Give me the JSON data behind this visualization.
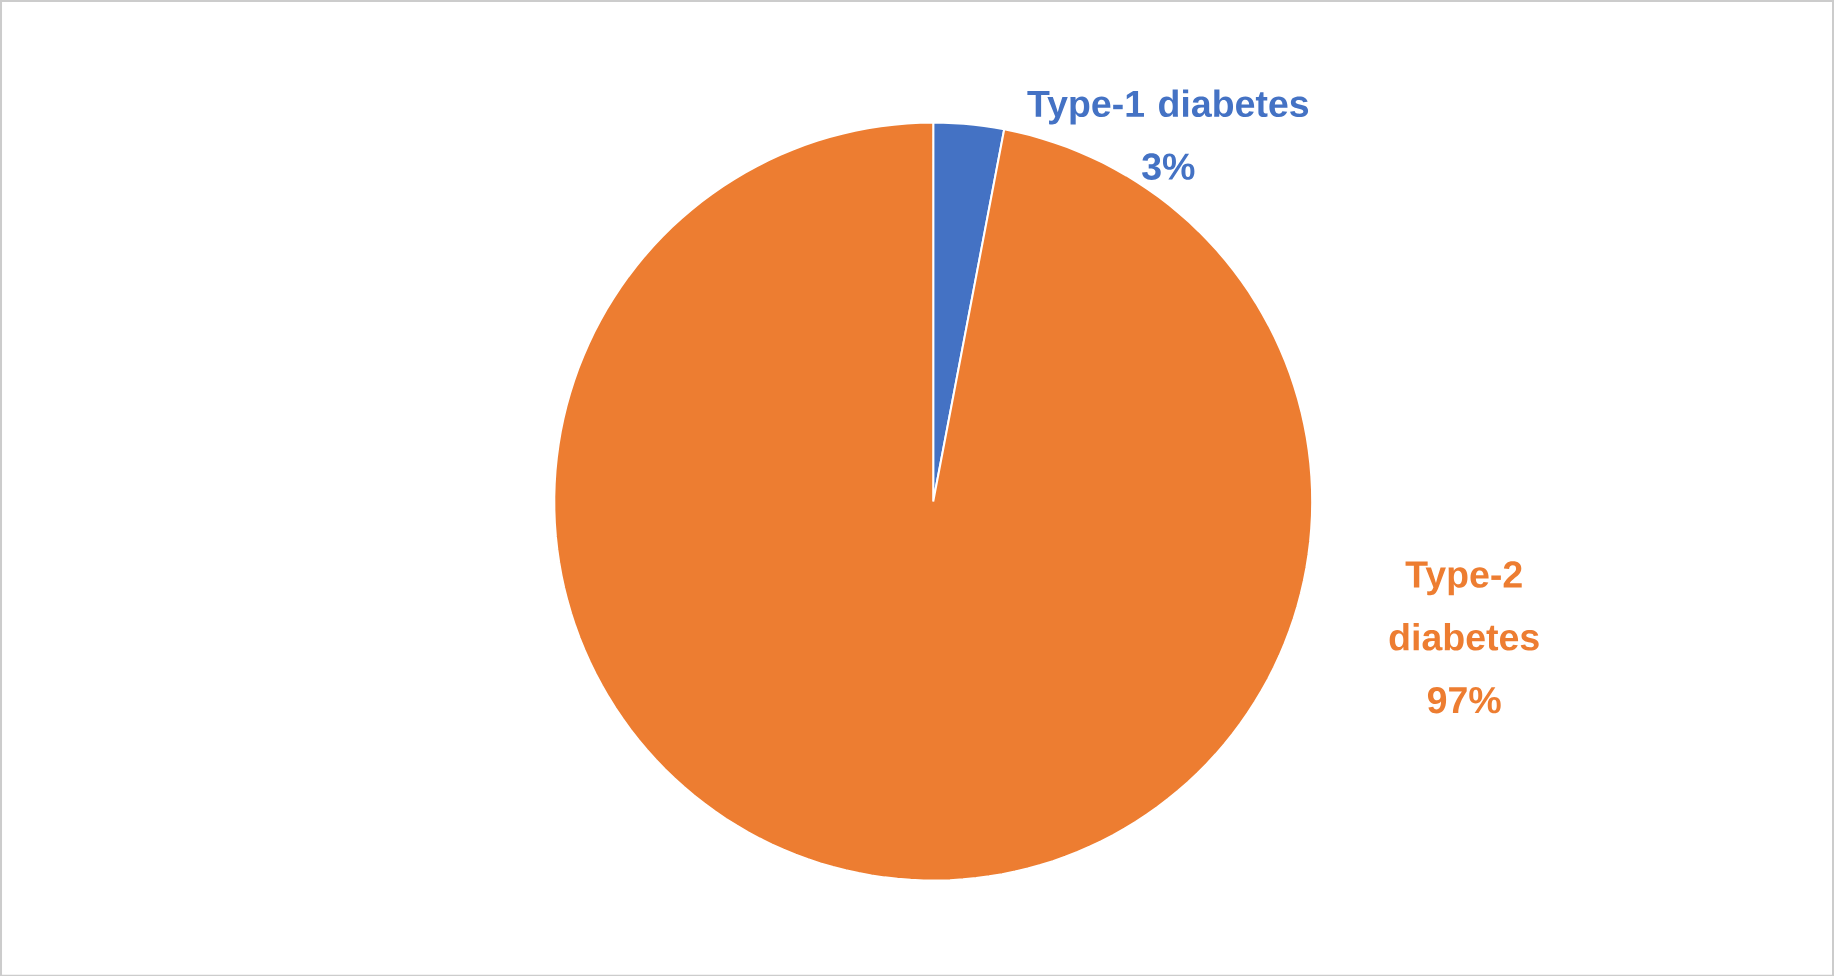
{
  "chart_data": {
    "type": "pie",
    "categories": [
      "Type-1 diabetes",
      "Type-2 diabetes"
    ],
    "values": [
      3,
      97
    ],
    "colors": [
      "#4472c4",
      "#ed7d31"
    ],
    "value_labels": [
      "3%",
      "97%"
    ]
  }
}
